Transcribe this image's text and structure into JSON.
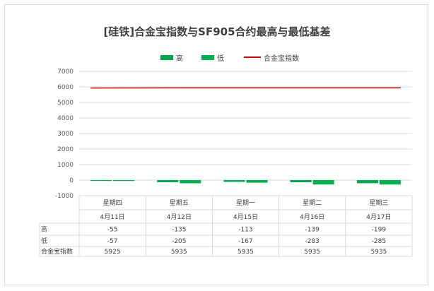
{
  "title": "[硅铁]合金宝指数与SF905合约最高与最低基差",
  "legend": [
    {
      "label": "高",
      "kind": "bar",
      "color": "#00a650"
    },
    {
      "label": "低",
      "kind": "bar",
      "color": "#00b050"
    },
    {
      "label": "合金宝指数",
      "kind": "line",
      "color": "#c00000"
    }
  ],
  "chart_data": {
    "type": "bar",
    "title": "[硅铁]合金宝指数与SF905合约最高与最低基差",
    "categories": [
      {
        "weekday": "星期四",
        "date": "4月11日"
      },
      {
        "weekday": "星期五",
        "date": "4月12日"
      },
      {
        "weekday": "星期一",
        "date": "4月15日"
      },
      {
        "weekday": "星期二",
        "date": "4月16日"
      },
      {
        "weekday": "星期三",
        "date": "4月17日"
      }
    ],
    "series": [
      {
        "name": "高",
        "type": "bar",
        "values": [
          -55,
          -135,
          -113,
          -139,
          -199
        ],
        "color": "#00a650"
      },
      {
        "name": "低",
        "type": "bar",
        "values": [
          -57,
          -205,
          -167,
          -283,
          -285
        ],
        "color": "#00b050"
      },
      {
        "name": "合金宝指数",
        "type": "line",
        "values": [
          5925,
          5935,
          5935,
          5935,
          5935
        ],
        "color": "#c00000"
      }
    ],
    "ylim": [
      -1000,
      7000
    ],
    "yticks": [
      -1000,
      0,
      1000,
      2000,
      3000,
      4000,
      5000,
      6000,
      7000
    ],
    "grid": true,
    "legend_position": "top-center",
    "data_table": true
  }
}
